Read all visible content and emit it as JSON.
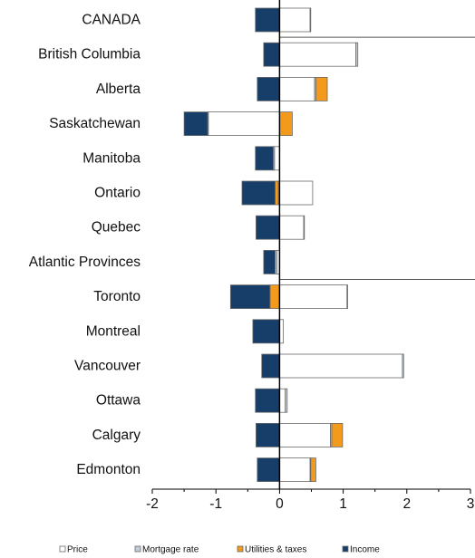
{
  "chart_data": {
    "type": "bar",
    "orientation": "horizontal",
    "stacked": true,
    "diverging": true,
    "categories": [
      "CANADA",
      "British Columbia",
      "Alberta",
      "Saskatchewan",
      "Manitoba",
      "Ontario",
      "Quebec",
      "Atlantic Provinces",
      "Toronto",
      "Montreal",
      "Vancouver",
      "Ottawa",
      "Calgary",
      "Edmonton"
    ],
    "series": [
      {
        "name": "Price",
        "color": "#ffffff",
        "values": [
          0.48,
          1.2,
          0.55,
          -1.12,
          -0.08,
          0.52,
          0.38,
          -0.04,
          1.06,
          0.06,
          1.93,
          0.09,
          0.8,
          0.48
        ]
      },
      {
        "name": "Mortgage rate",
        "color": "#c3cdd9",
        "values": [
          0.01,
          0.03,
          0.02,
          -0.01,
          -0.02,
          -0.02,
          0.01,
          -0.03,
          0.01,
          0.0,
          0.02,
          0.03,
          0.02,
          0.01
        ]
      },
      {
        "name": "Utilities & taxes",
        "color": "#f39a1c",
        "values": [
          0.0,
          0.0,
          0.18,
          0.2,
          0.0,
          -0.05,
          0.0,
          0.0,
          -0.15,
          0.0,
          0.0,
          0.0,
          0.17,
          0.08
        ]
      },
      {
        "name": "Income",
        "color": "#163e69",
        "values": [
          -0.38,
          -0.25,
          -0.35,
          -0.37,
          -0.28,
          -0.52,
          -0.37,
          -0.18,
          -0.62,
          -0.42,
          -0.28,
          -0.38,
          -0.37,
          -0.35
        ]
      }
    ],
    "xlim": [
      -2,
      3
    ],
    "xticks": [
      "-2",
      "-1",
      "0",
      "1",
      "2",
      "3"
    ],
    "separators_after": [
      "CANADA",
      "Atlantic Provinces"
    ],
    "legend_position": "bottom",
    "grid": false
  }
}
